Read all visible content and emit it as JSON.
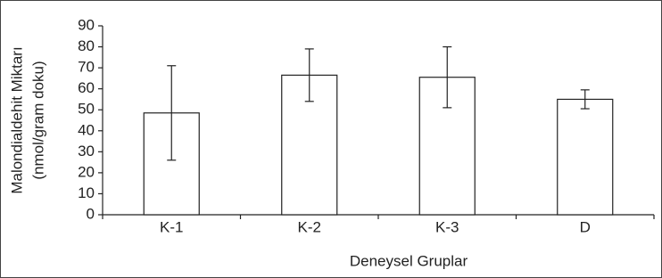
{
  "chart_data": {
    "type": "bar",
    "ylabel": [
      "Malondialdehit Miktarı",
      "(nmol/gram doku)"
    ],
    "xlabel": "Deneysel Gruplar",
    "categories": [
      "K-1",
      "K-2",
      "K-3",
      "D"
    ],
    "values": [
      48.5,
      66.5,
      65.5,
      55
    ],
    "errors": [
      22.5,
      12.5,
      14.5,
      4.5
    ],
    "color": "#ffffff",
    "ylim": [
      0,
      90
    ],
    "yticks": [
      0,
      10,
      20,
      30,
      40,
      50,
      60,
      70,
      80,
      90
    ],
    "grid": false
  }
}
